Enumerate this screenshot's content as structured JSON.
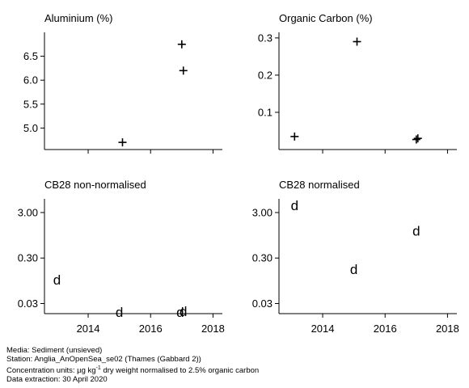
{
  "chart_data": [
    {
      "type": "scatter",
      "title": "Aluminium (%)",
      "marker": "+",
      "ylim": [
        4.55,
        7.0
      ],
      "xlim": [
        2012.6,
        2018.3
      ],
      "yticks": [
        5.0,
        5.5,
        6.0,
        6.5
      ],
      "ytick_labels": [
        "5.0",
        "5.5",
        "6.0",
        "6.5"
      ],
      "xticks": [
        2014,
        2016,
        2018
      ],
      "xtick_labels": [],
      "points": [
        {
          "x": 2015.1,
          "y": 4.7
        },
        {
          "x": 2017.0,
          "y": 6.75
        },
        {
          "x": 2017.05,
          "y": 6.2
        }
      ]
    },
    {
      "type": "scatter",
      "title": "Organic Carbon (%)",
      "marker": "+",
      "ylim": [
        0.0,
        0.315
      ],
      "xlim": [
        2012.6,
        2018.3
      ],
      "yticks": [
        0.1,
        0.2,
        0.3
      ],
      "ytick_labels": [
        "0.1",
        "0.2",
        "0.3"
      ],
      "xticks": [
        2014,
        2016,
        2018
      ],
      "xtick_labels": [],
      "points": [
        {
          "x": 2013.1,
          "y": 0.035
        },
        {
          "x": 2015.1,
          "y": 0.29
        },
        {
          "x": 2017.0,
          "y": 0.027
        },
        {
          "x": 2017.05,
          "y": 0.03
        }
      ]
    },
    {
      "type": "scatter",
      "title": "CB28 non-normalised",
      "marker": "d",
      "yscale": "log",
      "ylim": [
        0.018,
        6.0
      ],
      "xlim": [
        2012.6,
        2018.3
      ],
      "yticks": [
        0.03,
        0.3,
        3.0
      ],
      "ytick_labels": [
        "0.03",
        "0.30",
        "3.00"
      ],
      "xticks": [
        2014,
        2016,
        2018
      ],
      "xtick_labels": [
        "2014",
        "2016",
        "2018"
      ],
      "points": [
        {
          "x": 2013.0,
          "y": 0.1
        },
        {
          "x": 2015.0,
          "y": 0.0195
        },
        {
          "x": 2016.95,
          "y": 0.0195
        },
        {
          "x": 2017.05,
          "y": 0.0205
        }
      ]
    },
    {
      "type": "scatter",
      "title": "CB28 normalised",
      "marker": "d",
      "yscale": "log",
      "ylim": [
        0.018,
        6.0
      ],
      "xlim": [
        2012.6,
        2018.3
      ],
      "yticks": [
        0.03,
        0.3,
        3.0
      ],
      "ytick_labels": [
        "0.03",
        "0.30",
        "3.00"
      ],
      "xticks": [
        2014,
        2016,
        2018
      ],
      "xtick_labels": [
        "2014",
        "2016",
        "2018"
      ],
      "points": [
        {
          "x": 2013.1,
          "y": 4.3
        },
        {
          "x": 2015.0,
          "y": 0.17
        },
        {
          "x": 2017.0,
          "y": 1.2
        }
      ]
    }
  ],
  "footer": {
    "media": "Media: Sediment (unsieved)",
    "station": "Station: Anglia_AnOpenSea_se02 (Thames (Gabbard 2))",
    "units_prefix": "Concentration units:  µg kg",
    "units_sup": "-1",
    "units_suffix": " dry weight normalised to 2.5% organic carbon",
    "extraction": "Data extraction: 30 April 2020"
  }
}
